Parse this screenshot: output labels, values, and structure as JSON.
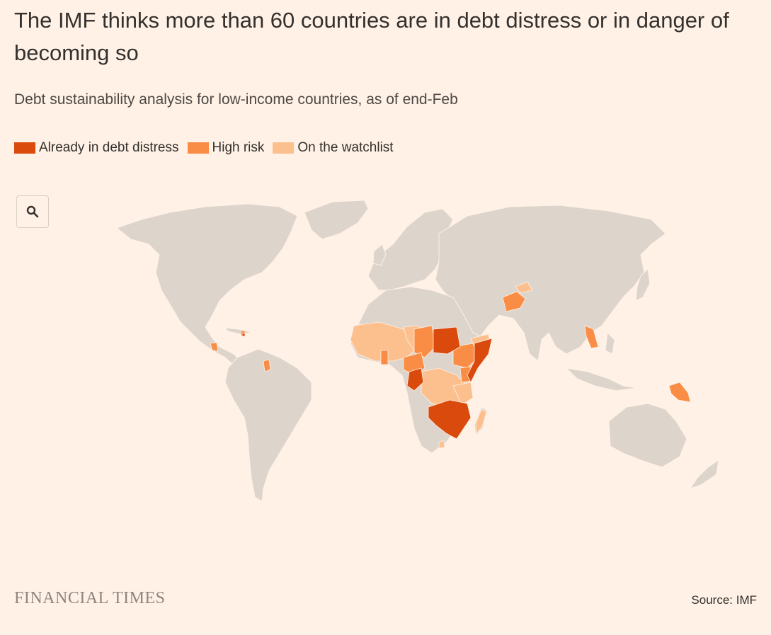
{
  "header": {
    "title": "The IMF thinks more than 60 countries are in debt distress or in danger of becoming so",
    "subtitle": "Debt sustainability analysis for low-income countries, as of end-Feb"
  },
  "legend": [
    {
      "label": "Already in debt distress",
      "color": "#D94A0C"
    },
    {
      "label": "High risk",
      "color": "#F98D45"
    },
    {
      "label": "On the watchlist",
      "color": "#FCC08F"
    }
  ],
  "colors": {
    "background": "#FFF1E5",
    "land": "#DDD4CC",
    "distress": "#D94A0C",
    "high_risk": "#F98D45",
    "watchlist": "#FCC08F"
  },
  "controls": {
    "zoom_icon": "search-icon"
  },
  "footer": {
    "brand": "FINANCIAL TIMES",
    "source": "Source: IMF"
  }
}
